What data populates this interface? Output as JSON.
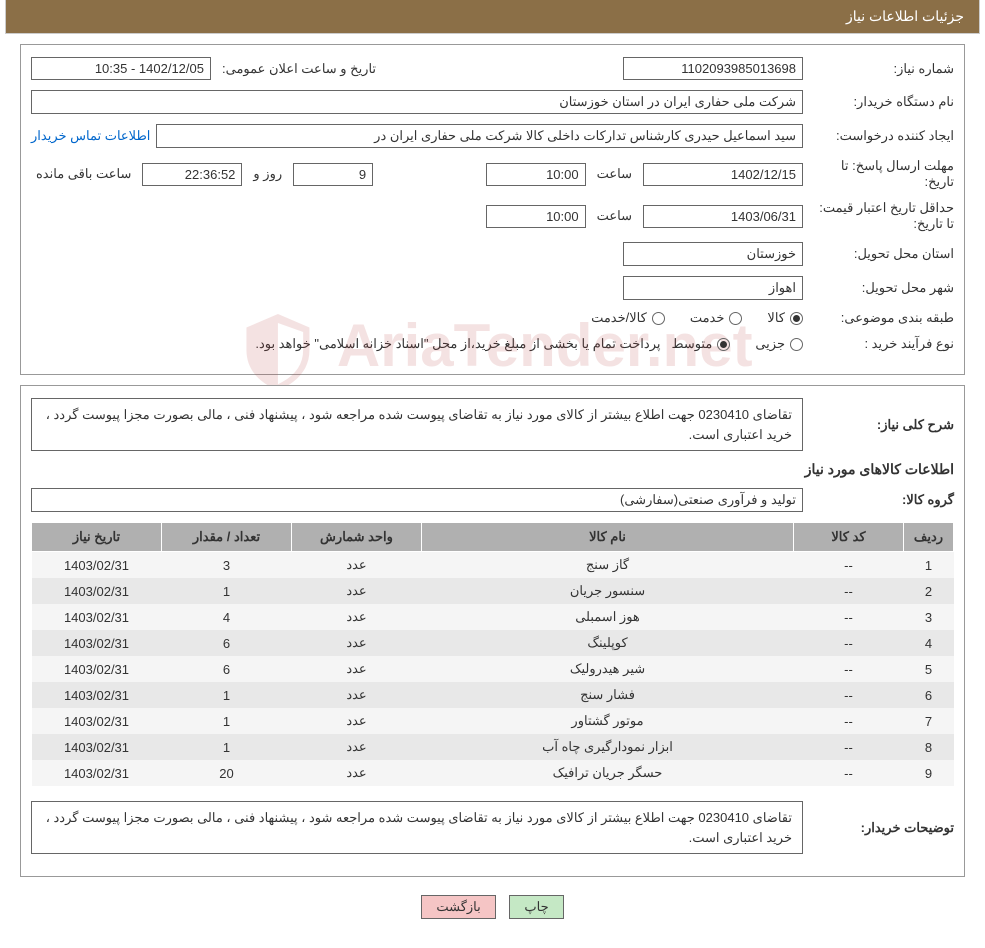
{
  "header": {
    "title": "جزئیات اطلاعات نیاز"
  },
  "fields": {
    "need_no_label": "شماره نیاز:",
    "need_no": "1102093985013698",
    "announce_label": "تاریخ و ساعت اعلان عمومی:",
    "announce": "1402/12/05 - 10:35",
    "buyer_org_label": "نام دستگاه خریدار:",
    "buyer_org": "شرکت ملی حفاری ایران در استان خوزستان",
    "requester_label": "ایجاد کننده درخواست:",
    "requester": "سید اسماعیل حیدری کارشناس تدارکات داخلی کالا شرکت ملی حفاری ایران در",
    "contact_link": "اطلاعات تماس خریدار",
    "deadline_label": "مهلت ارسال پاسخ: تا تاریخ:",
    "deadline_date": "1402/12/15",
    "time_label": "ساعت",
    "deadline_time": "10:00",
    "days_remain": "9",
    "days_and": "روز و",
    "time_remain": "22:36:52",
    "remain_suffix": "ساعت باقی مانده",
    "validity_label": "حداقل تاریخ اعتبار قیمت: تا تاریخ:",
    "validity_date": "1403/06/31",
    "validity_time": "10:00",
    "province_label": "استان محل تحویل:",
    "province": "خوزستان",
    "city_label": "شهر محل تحویل:",
    "city": "اهواز",
    "category_label": "طبقه بندی موضوعی:",
    "cat_goods": "کالا",
    "cat_service": "خدمت",
    "cat_both": "کالا/خدمت",
    "purchase_type_label": "نوع فرآیند خرید :",
    "pt_minor": "جزیی",
    "pt_medium": "متوسط",
    "pt_note": "پرداخت تمام یا بخشی از مبلغ خرید،از محل \"اسناد خزانه اسلامی\" خواهد بود.",
    "summary_label": "شرح کلی نیاز:",
    "summary_text": "تقاضای 0230410 جهت اطلاع بیشتر از کالای مورد نیاز به تقاضای پیوست شده مراجعه شود ، پیشنهاد فنی ، مالی بصورت مجزا پیوست گردد ، خرید اعتباری است.",
    "goods_section_title": "اطلاعات کالاهای مورد نیاز",
    "goods_group_label": "گروه کالا:",
    "goods_group": "تولید و فرآوری صنعتی(سفارشی)",
    "buyer_notes_label": "توضیحات خریدار:",
    "buyer_notes": "تقاضای 0230410 جهت اطلاع بیشتر از کالای مورد نیاز به تقاضای پیوست شده مراجعه شود ، پیشنهاد فنی ، مالی بصورت مجزا پیوست گردد ، خرید اعتباری است."
  },
  "table": {
    "headers": {
      "idx": "ردیف",
      "code": "کد کالا",
      "name": "نام کالا",
      "unit": "واحد شمارش",
      "qty": "تعداد / مقدار",
      "date": "تاریخ نیاز"
    },
    "rows": [
      {
        "idx": "1",
        "code": "--",
        "name": "گاز سنج",
        "unit": "عدد",
        "qty": "3",
        "date": "1403/02/31"
      },
      {
        "idx": "2",
        "code": "--",
        "name": "سنسور جریان",
        "unit": "عدد",
        "qty": "1",
        "date": "1403/02/31"
      },
      {
        "idx": "3",
        "code": "--",
        "name": "هوز اسمبلی",
        "unit": "عدد",
        "qty": "4",
        "date": "1403/02/31"
      },
      {
        "idx": "4",
        "code": "--",
        "name": "کوپلینگ",
        "unit": "عدد",
        "qty": "6",
        "date": "1403/02/31"
      },
      {
        "idx": "5",
        "code": "--",
        "name": "شیر هیدرولیک",
        "unit": "عدد",
        "qty": "6",
        "date": "1403/02/31"
      },
      {
        "idx": "6",
        "code": "--",
        "name": "فشار سنج",
        "unit": "عدد",
        "qty": "1",
        "date": "1403/02/31"
      },
      {
        "idx": "7",
        "code": "--",
        "name": "موتور گشتاور",
        "unit": "عدد",
        "qty": "1",
        "date": "1403/02/31"
      },
      {
        "idx": "8",
        "code": "--",
        "name": "ابزار نمودارگیری چاه آب",
        "unit": "عدد",
        "qty": "1",
        "date": "1403/02/31"
      },
      {
        "idx": "9",
        "code": "--",
        "name": "حسگر جریان ترافیک",
        "unit": "عدد",
        "qty": "20",
        "date": "1403/02/31"
      }
    ]
  },
  "buttons": {
    "print": "چاپ",
    "back": "بازگشت"
  },
  "styling": {
    "header_bg": "#8b6f47",
    "table_header_bg": "#b0b0b0",
    "row_odd_bg": "#f5f5f5",
    "row_even_bg": "#e8e8e8",
    "btn_print_bg": "#c5e8c5",
    "btn_back_bg": "#f5c5c5",
    "link_color": "#0066cc"
  }
}
